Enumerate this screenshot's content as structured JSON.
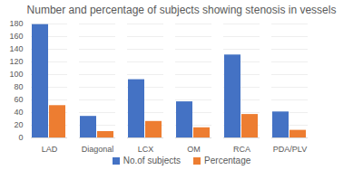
{
  "chart_data": {
    "type": "bar",
    "title": "Number and percentage of subjects showing stenosis in vessels",
    "categories": [
      "LAD",
      "Diagonal",
      "LCX",
      "OM",
      "RCA",
      "PDA/PLV"
    ],
    "series": [
      {
        "name": "No.of subjects",
        "color": "#4472c4",
        "values": [
          179,
          34,
          92,
          57,
          131,
          41
        ]
      },
      {
        "name": "Percentage",
        "color": "#ed7d31",
        "values": [
          51,
          10,
          26,
          16,
          37,
          12
        ]
      }
    ],
    "ylim": [
      0,
      180
    ],
    "yticks": [
      0,
      20,
      40,
      60,
      80,
      100,
      120,
      140,
      160,
      180
    ],
    "grid": true,
    "legend": "bottom"
  }
}
